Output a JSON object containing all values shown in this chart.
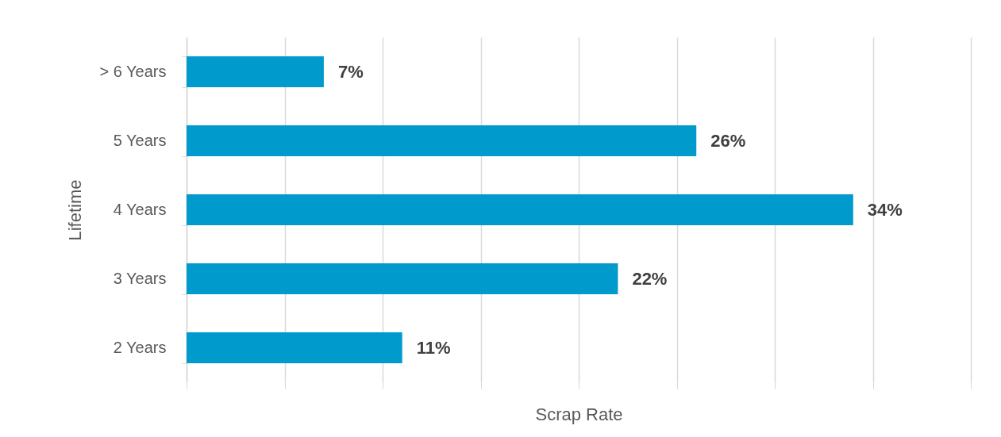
{
  "chart_data": {
    "type": "bar",
    "orientation": "horizontal",
    "xlabel": "Scrap Rate",
    "ylabel": "Lifetime",
    "categories": [
      "> 6 Years",
      "5 Years",
      "4 Years",
      "3 Years",
      "2 Years"
    ],
    "values": [
      7,
      26,
      34,
      22,
      11
    ],
    "value_labels": [
      "7%",
      "26%",
      "34%",
      "22%",
      "11%"
    ],
    "color": "#009bcc",
    "xlim": [
      0,
      40
    ],
    "xticks": [
      {
        "value": 0,
        "label": null
      },
      {
        "value": 5,
        "label": null
      },
      {
        "value": 10,
        "label": null
      },
      {
        "value": 15,
        "label": null
      },
      {
        "value": 20,
        "label": null
      },
      {
        "value": 25,
        "label": null
      },
      {
        "value": 30,
        "label": null
      },
      {
        "value": 35,
        "label": null
      },
      {
        "value": 40,
        "label": null
      }
    ],
    "tick_labels": "y",
    "grid": "x"
  }
}
